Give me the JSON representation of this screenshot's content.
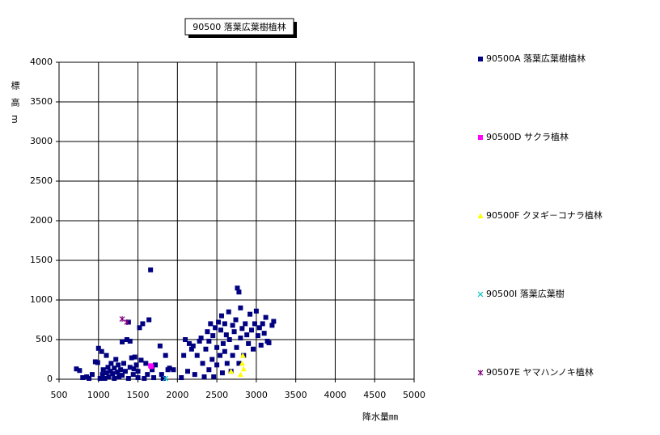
{
  "chart_data": {
    "type": "scatter",
    "title": "90500 落葉広葉樹植林",
    "xlabel": "降水量㎜",
    "ylabel": "標高m",
    "xlim": [
      500,
      5000
    ],
    "xticks": [
      500,
      1000,
      1500,
      2000,
      2500,
      3000,
      3500,
      4000,
      4500,
      5000
    ],
    "ylim": [
      0,
      4000
    ],
    "yticks": [
      0,
      500,
      1000,
      1500,
      2000,
      2500,
      3000,
      3500,
      4000
    ],
    "grid": true,
    "series": [
      {
        "name": "90500A 落葉広葉樹植林",
        "color": "#000080",
        "marker": "square",
        "x": [
          720,
          760,
          800,
          850,
          880,
          920,
          960,
          990,
          1000,
          1020,
          1040,
          1050,
          1060,
          1080,
          1100,
          1100,
          1120,
          1130,
          1150,
          1160,
          1180,
          1200,
          1200,
          1220,
          1240,
          1250,
          1260,
          1280,
          1300,
          1300,
          1320,
          1340,
          1360,
          1380,
          1380,
          1400,
          1400,
          1420,
          1440,
          1450,
          1460,
          1480,
          1500,
          1500,
          1520,
          1540,
          1560,
          1580,
          1600,
          1620,
          1640,
          1660,
          1680,
          1700,
          1720,
          1780,
          1800,
          1820,
          1850,
          1880,
          1900,
          1950,
          2050,
          2080,
          2100,
          2130,
          2150,
          2180,
          2200,
          2220,
          2250,
          2280,
          2300,
          2320,
          2340,
          2360,
          2380,
          2400,
          2400,
          2420,
          2440,
          2450,
          2460,
          2480,
          2500,
          2500,
          2520,
          2540,
          2550,
          2560,
          2570,
          2580,
          2600,
          2600,
          2620,
          2630,
          2650,
          2660,
          2680,
          2700,
          2700,
          2720,
          2740,
          2750,
          2760,
          2780,
          2780,
          2800,
          2800,
          2820,
          2840,
          2860,
          2880,
          2900,
          2920,
          2940,
          2960,
          2980,
          3000,
          3020,
          3040,
          3060,
          3080,
          3100,
          3120,
          3140,
          3160,
          3200,
          3220
        ],
        "y": [
          130,
          110,
          20,
          30,
          10,
          60,
          220,
          210,
          390,
          10,
          350,
          60,
          120,
          10,
          80,
          300,
          150,
          30,
          100,
          200,
          70,
          10,
          140,
          250,
          90,
          180,
          30,
          120,
          50,
          470,
          200,
          100,
          500,
          720,
          10,
          150,
          480,
          270,
          60,
          130,
          280,
          180,
          100,
          20,
          650,
          240,
          700,
          10,
          200,
          60,
          750,
          1380,
          120,
          20,
          180,
          420,
          60,
          10,
          300,
          120,
          140,
          120,
          20,
          300,
          500,
          100,
          450,
          380,
          420,
          60,
          300,
          480,
          520,
          200,
          30,
          380,
          600,
          120,
          480,
          700,
          250,
          550,
          30,
          650,
          400,
          180,
          720,
          300,
          620,
          800,
          80,
          450,
          350,
          700,
          560,
          200,
          850,
          500,
          100,
          680,
          300,
          600,
          750,
          400,
          1150,
          1100,
          200,
          900,
          520,
          640,
          300,
          700,
          560,
          450,
          820,
          620,
          380,
          700,
          860,
          550,
          650,
          430,
          700,
          580,
          780,
          480,
          460,
          680,
          730
        ]
      },
      {
        "name": "90500D サクラ植林",
        "color": "#ff00ff",
        "marker": "square",
        "x": [
          1660,
          1670
        ],
        "y": [
          170,
          160
        ]
      },
      {
        "name": "90500F クヌギ－コナラ植林",
        "color": "#ffff00",
        "marker": "triangle",
        "x": [
          2680,
          2800,
          2820,
          2830,
          2840
        ],
        "y": [
          100,
          60,
          200,
          300,
          130
        ]
      },
      {
        "name": "90500I 落葉広葉樹",
        "color": "#00c0c0",
        "marker": "x",
        "x": [
          1850
        ],
        "y": [
          10
        ]
      },
      {
        "name": "90507E ヤマハンノキ植林",
        "color": "#800080",
        "marker": "star",
        "x": [
          1300,
          1360
        ],
        "y": [
          760,
          720
        ]
      }
    ]
  }
}
